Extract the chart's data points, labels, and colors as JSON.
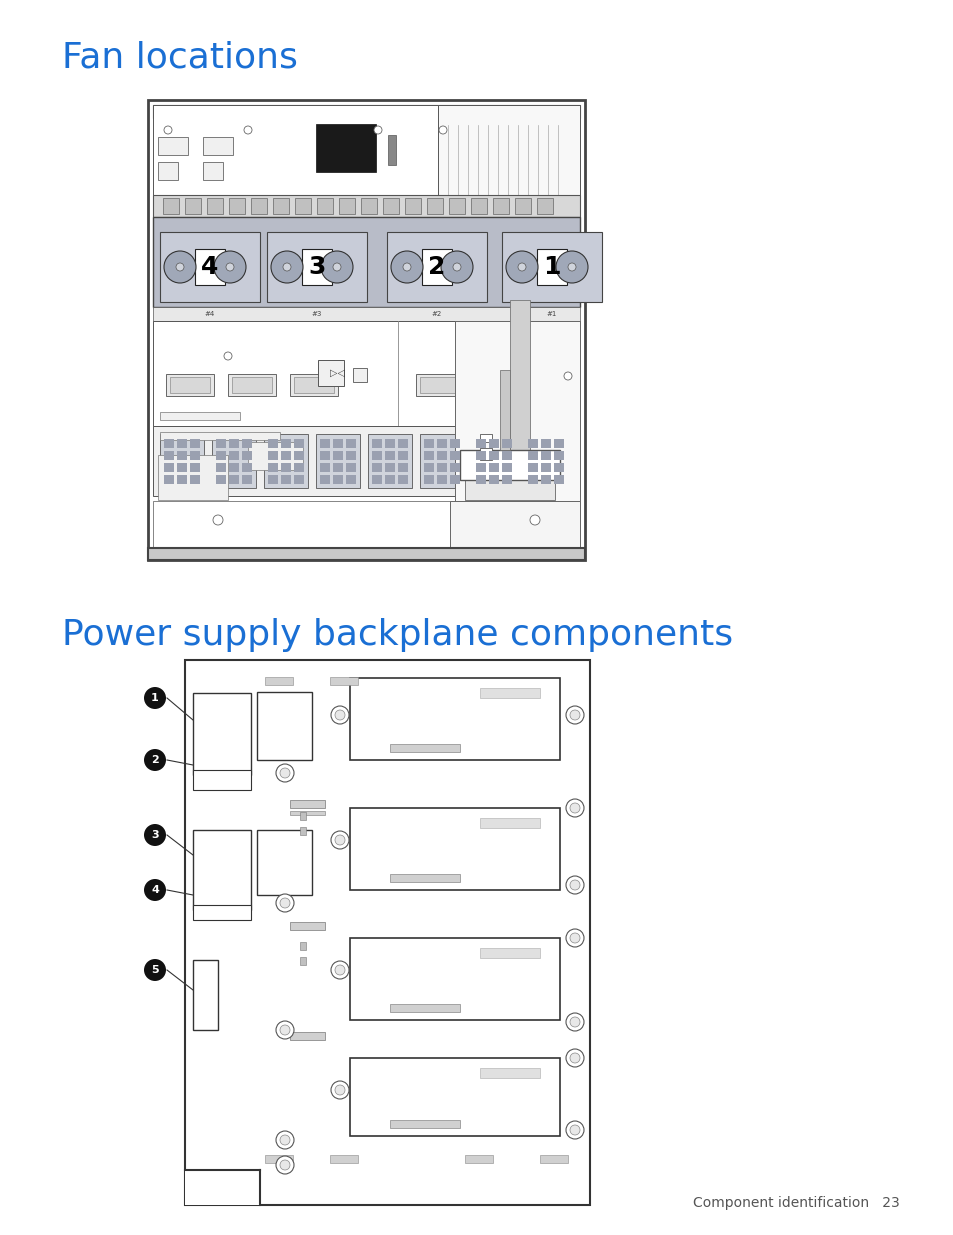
{
  "page_bg": "#ffffff",
  "title1": "Fan locations",
  "title2": "Power supply backplane components",
  "title_color": "#1a6fd4",
  "title1_fontsize": 26,
  "title2_fontsize": 26,
  "footer_text": "Component identification   23",
  "footer_fontsize": 10,
  "footer_color": "#555555",
  "line_color": "#333333",
  "light_gray": "#e0e0e0",
  "mid_gray": "#b0b0b0",
  "dark_gray": "#666666"
}
